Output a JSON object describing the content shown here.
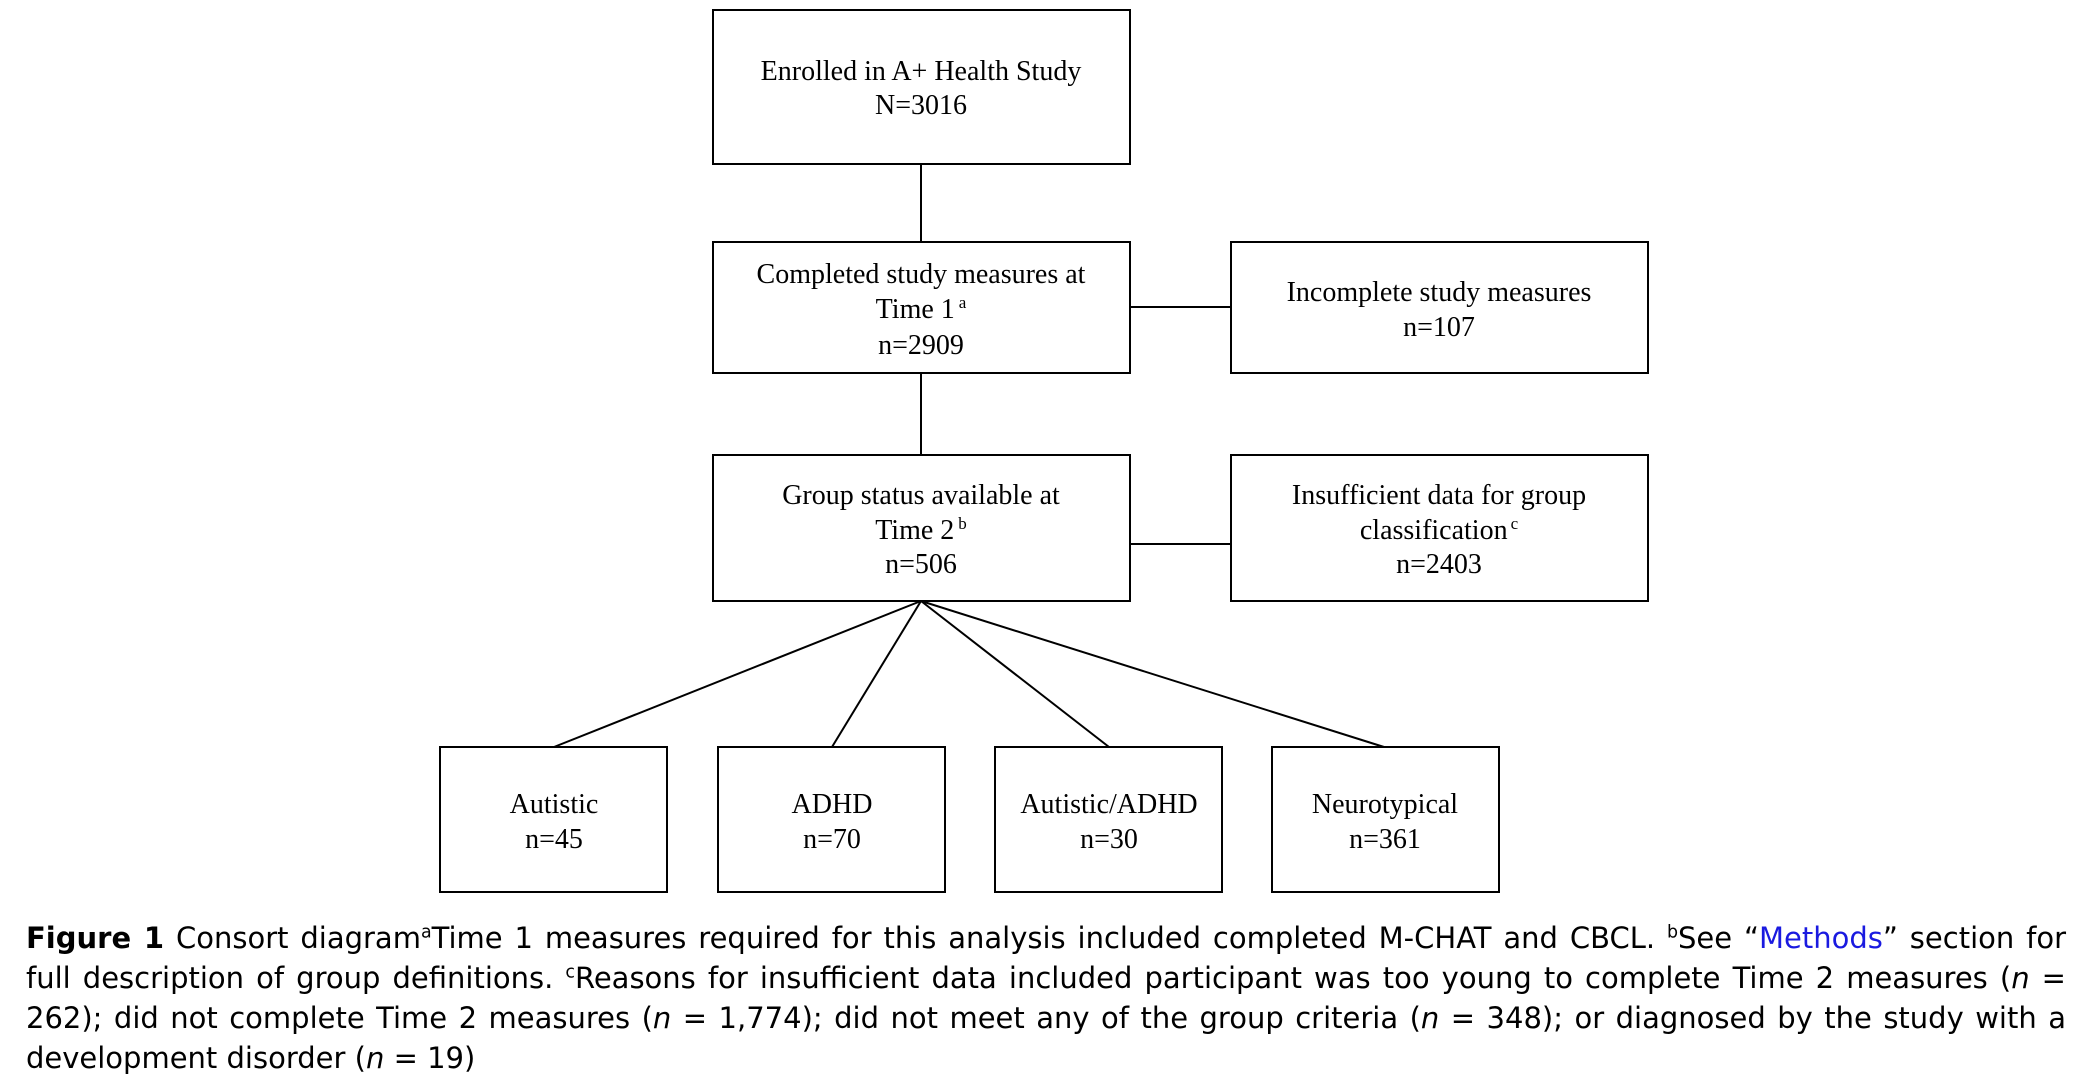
{
  "nodes": {
    "enrolled": {
      "line1": "Enrolled in A+ Health Study",
      "line2": "N=3016"
    },
    "time1": {
      "line1": "Completed study measures at",
      "line2_text": "Time 1",
      "line2_sup": "a",
      "line3": "n=2909"
    },
    "incomplete": {
      "line1": "Incomplete study measures",
      "line2": "n=107"
    },
    "time2": {
      "line1": "Group status available at",
      "line2_text": "Time 2",
      "line2_sup": "b",
      "line3": "n=506"
    },
    "insufficient": {
      "line1": "Insufficient data for group",
      "line2_text": "classification",
      "line2_sup": "c",
      "line3": "n=2403"
    },
    "autistic": {
      "line1": "Autistic",
      "line2": "n=45"
    },
    "adhd": {
      "line1": "ADHD",
      "line2": "n=70"
    },
    "autistic_adhd": {
      "line1": "Autistic/ADHD",
      "line2": "n=30"
    },
    "neurotypical": {
      "line1": "Neurotypical",
      "line2": "n=361"
    }
  },
  "caption": {
    "label": "Figure 1",
    "title": "Consort diagram",
    "note_a_marker": "a",
    "note_a": "Time 1 measures required for this analysis included completed M-CHAT and CBCL. ",
    "note_b_marker": "b",
    "note_b_before": "See “",
    "note_b_link": "Methods",
    "note_b_after": "” section for full description of group definitions. ",
    "note_c_marker": "c",
    "note_c_part1": "Reasons for insufficient data included participant was too young to complete Time 2 measures (",
    "n_symbol": "n",
    "note_c_val1": " = 262); did not complete Time 2 measures (",
    "note_c_val2": " = 1,774); did not meet any of the group criteria (",
    "note_c_val3": " = 348); or diagnosed by the study with a development disorder (",
    "note_c_val4": " = 19)"
  },
  "colors": {
    "link": "#1a1ae0",
    "stroke": "#000000"
  }
}
